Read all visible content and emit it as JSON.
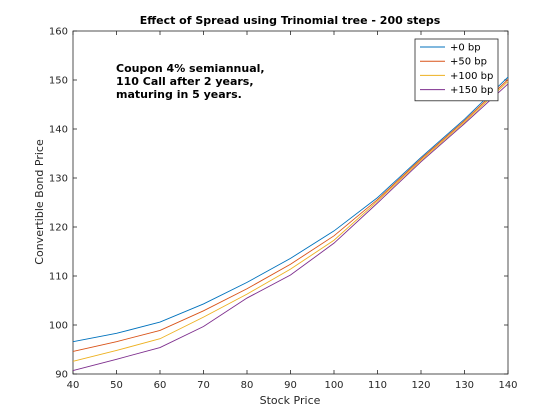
{
  "chart_data": {
    "type": "line",
    "title": "Effect of Spread using Trinomial tree - 200 steps",
    "xlabel": "Stock Price",
    "ylabel": "Convertible Bond Price",
    "xlim": [
      40,
      140
    ],
    "ylim": [
      90,
      160
    ],
    "x_ticks": [
      40,
      50,
      60,
      70,
      80,
      90,
      100,
      110,
      120,
      130,
      140
    ],
    "y_ticks": [
      90,
      100,
      110,
      120,
      130,
      140,
      150,
      160
    ],
    "grid": false,
    "legend_position": "top-right",
    "annotation": [
      "Coupon 4% semiannual,",
      "110 Call after 2 years,",
      "maturing in 5 years."
    ],
    "x": [
      40,
      50,
      60,
      70,
      80,
      90,
      100,
      110,
      120,
      130,
      140
    ],
    "series": [
      {
        "name": "+0 bp",
        "color": "#0072BD",
        "values": [
          96.6,
          98.3,
          100.6,
          104.3,
          108.7,
          113.6,
          119.2,
          126.0,
          134.2,
          142.0,
          150.6
        ]
      },
      {
        "name": "+50 bp",
        "color": "#D95319",
        "values": [
          94.6,
          96.6,
          98.9,
          102.9,
          107.4,
          112.4,
          118.2,
          125.6,
          133.9,
          141.7,
          150.1
        ]
      },
      {
        "name": "+100 bp",
        "color": "#EDB120",
        "values": [
          92.6,
          94.8,
          97.2,
          101.6,
          106.3,
          111.4,
          117.3,
          125.3,
          133.6,
          141.4,
          149.7
        ]
      },
      {
        "name": "+150 bp",
        "color": "#7E2F8E",
        "values": [
          90.7,
          93.0,
          95.4,
          99.7,
          105.5,
          110.2,
          116.7,
          124.9,
          133.3,
          141.1,
          149.2
        ]
      }
    ]
  }
}
